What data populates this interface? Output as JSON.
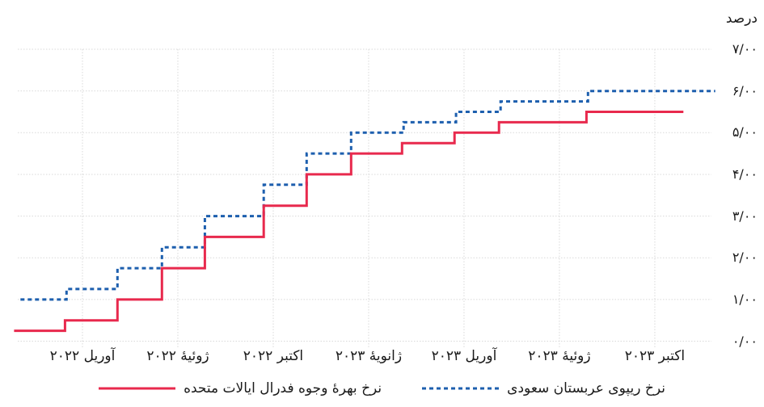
{
  "chart_data": {
    "type": "line",
    "subtype": "step",
    "unit_label": "درصد",
    "grid": true,
    "legend_position": "bottom-center",
    "x_axis": {
      "tick_labels": [
        "آوریل ۲۰۲۲",
        "ژوئیهٔ ۲۰۲۲",
        "اکتبر ۲۰۲۲",
        "ژانویهٔ ۲۰۲۳",
        "آوریل ۲۰۲۳",
        "ژوئیهٔ ۲۰۲۳",
        "اکتبر ۲۰۲۳"
      ],
      "tick_months": [
        3,
        6,
        9,
        12,
        15,
        18,
        21
      ],
      "note": "months counted from January 2022 = 0"
    },
    "y_axis": {
      "ticks": [
        0,
        1,
        2,
        3,
        4,
        5,
        6,
        7
      ],
      "tick_labels": [
        "۰/۰۰",
        "۱/۰۰",
        "۲/۰۰",
        "۳/۰۰",
        "۴/۰۰",
        "۵/۰۰",
        "۶/۰۰",
        "۷/۰۰"
      ],
      "ylim": [
        0,
        7
      ]
    },
    "series": [
      {
        "id": "saudi-repo-rate",
        "name": "نرخ ریپوی عربستان سعودی",
        "color": "#1d5fae",
        "line_style": "dotted",
        "points": [
          [
            1.05,
            1.0
          ],
          [
            2.5,
            1.25
          ],
          [
            4.1,
            1.75
          ],
          [
            5.5,
            2.25
          ],
          [
            6.85,
            3.0
          ],
          [
            8.7,
            3.75
          ],
          [
            10.05,
            4.5
          ],
          [
            11.45,
            5.0
          ],
          [
            13.1,
            5.25
          ],
          [
            14.75,
            5.5
          ],
          [
            16.15,
            5.75
          ],
          [
            18.9,
            6.0
          ]
        ],
        "end_month": 22.9,
        "final_value": 6.0
      },
      {
        "id": "us-fed-funds-rate",
        "name": "نرخ بهرهٔ وجوه فدرال ایالات متحده",
        "color": "#e8294d",
        "line_style": "solid",
        "points": [
          [
            0.85,
            0.25
          ],
          [
            2.45,
            0.5
          ],
          [
            4.1,
            1.0
          ],
          [
            5.5,
            1.75
          ],
          [
            6.85,
            2.5
          ],
          [
            8.7,
            3.25
          ],
          [
            10.05,
            4.0
          ],
          [
            11.45,
            4.5
          ],
          [
            13.05,
            4.75
          ],
          [
            14.7,
            5.0
          ],
          [
            16.1,
            5.25
          ],
          [
            18.85,
            5.5
          ]
        ],
        "end_month": 21.9,
        "final_value": 5.5
      }
    ],
    "gridline_color": "#d9d9d9"
  }
}
